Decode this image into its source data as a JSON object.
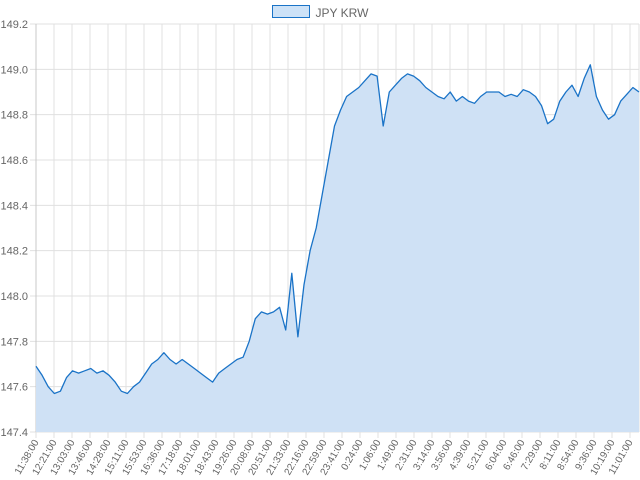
{
  "chart_data": {
    "type": "area",
    "legend": {
      "label": "JPY KRW",
      "position": "top-center"
    },
    "colors": {
      "line": "#1a73c7",
      "fill": "#cfe1f5",
      "grid": "#e0e0e0",
      "text": "#666666"
    },
    "grid": true,
    "ylim": [
      147.4,
      149.2
    ],
    "y_ticks": [
      "147.4",
      "147.6",
      "147.8",
      "148.0",
      "148.2",
      "148.4",
      "148.6",
      "148.8",
      "149.0",
      "149.2"
    ],
    "x_ticks": [
      "11:38:00",
      "12:21:00",
      "13:03:00",
      "13:46:00",
      "14:28:00",
      "15:11:00",
      "15:53:00",
      "16:36:00",
      "17:18:00",
      "18:01:00",
      "18:43:00",
      "19:26:00",
      "20:08:00",
      "20:51:00",
      "21:33:00",
      "22:16:00",
      "22:59:00",
      "23:41:00",
      "0:24:00",
      "1:06:00",
      "1:49:00",
      "2:31:00",
      "3:14:00",
      "3:56:00",
      "4:39:00",
      "5:21:00",
      "6:04:00",
      "6:46:00",
      "7:29:00",
      "8:11:00",
      "8:54:00",
      "9:36:00",
      "10:19:00",
      "11:01:00"
    ],
    "series": [
      {
        "name": "JPY KRW",
        "values": [
          147.69,
          147.65,
          147.6,
          147.57,
          147.58,
          147.64,
          147.67,
          147.66,
          147.67,
          147.68,
          147.66,
          147.67,
          147.65,
          147.62,
          147.58,
          147.57,
          147.6,
          147.62,
          147.66,
          147.7,
          147.72,
          147.75,
          147.72,
          147.7,
          147.72,
          147.7,
          147.68,
          147.66,
          147.64,
          147.62,
          147.66,
          147.68,
          147.7,
          147.72,
          147.73,
          147.8,
          147.9,
          147.93,
          147.92,
          147.93,
          147.95,
          147.85,
          148.1,
          147.82,
          148.05,
          148.2,
          148.3,
          148.45,
          148.6,
          148.75,
          148.82,
          148.88,
          148.9,
          148.92,
          148.95,
          148.98,
          148.97,
          148.75,
          148.9,
          148.93,
          148.96,
          148.98,
          148.97,
          148.95,
          148.92,
          148.9,
          148.88,
          148.87,
          148.9,
          148.86,
          148.88,
          148.86,
          148.85,
          148.88,
          148.9,
          148.9,
          148.9,
          148.88,
          148.89,
          148.88,
          148.91,
          148.9,
          148.88,
          148.84,
          148.76,
          148.78,
          148.86,
          148.9,
          148.93,
          148.88,
          148.96,
          149.02,
          148.88,
          148.82,
          148.78,
          148.8,
          148.86,
          148.89,
          148.92,
          148.9
        ]
      }
    ]
  }
}
